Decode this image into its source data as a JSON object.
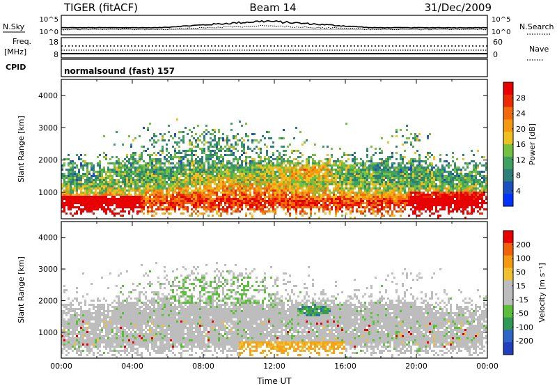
{
  "header": {
    "title": "TIGER (fitACF)",
    "beam": "Beam 14",
    "date": "31/Dec/2009"
  },
  "strip_panels": {
    "nsky_label": "N.Sky",
    "nsearch_label": "N.Search",
    "noise_ticks_left": [
      "10^5",
      "10^0"
    ],
    "noise_ticks_right": [
      "10^5",
      "10^0"
    ],
    "freq_label_1": "Freq.",
    "freq_label_2": "[MHz]",
    "freq_ticks": [
      "18",
      "8"
    ],
    "nave_label": "Nave",
    "nave_ticks": [
      "60",
      "0"
    ],
    "cpid_label": "CPID",
    "cpid_text": "normalsound (fast) 157"
  },
  "chart_data": [
    {
      "type": "heatmap",
      "quantity": "Power",
      "ylabel": "Slant Range [km]",
      "xlabel": "",
      "x_range_hours": [
        0,
        24
      ],
      "ylim": [
        180,
        4500
      ],
      "y_ticks": [
        "1000",
        "2000",
        "3000",
        "4000"
      ],
      "colorbar": {
        "label": "Power [dB]",
        "ticks": [
          "28",
          "24",
          "20",
          "16",
          "12",
          "8",
          "4"
        ],
        "colors": [
          "#0033ff",
          "#1c4fc0",
          "#2e7f7a",
          "#3fa060",
          "#74c040",
          "#f0c020",
          "#f59a10",
          "#f26a0a",
          "#ec2a00",
          "#e80000"
        ]
      }
    },
    {
      "type": "heatmap",
      "quantity": "Velocity",
      "ylabel": "Slant Range [km]",
      "xlabel": "Time UT",
      "x_range_hours": [
        0,
        24
      ],
      "x_ticks": [
        "00:00",
        "04:00",
        "08:00",
        "12:00",
        "16:00",
        "20:00",
        "00:00"
      ],
      "ylim": [
        180,
        4500
      ],
      "y_ticks": [
        "1000",
        "2000",
        "3000",
        "4000"
      ],
      "colorbar": {
        "label": "Velocity [m s⁻¹]",
        "ticks": [
          "200",
          "100",
          "50",
          "15",
          "-15",
          "-50",
          "-100",
          "-200"
        ],
        "colors": [
          "#1f3fbf",
          "#2e66c8",
          "#2f9a55",
          "#5cbf3a",
          "#bdbdbd",
          "#bdbdbd",
          "#f0c030",
          "#f59a10",
          "#f0620a",
          "#e80000"
        ]
      }
    }
  ]
}
